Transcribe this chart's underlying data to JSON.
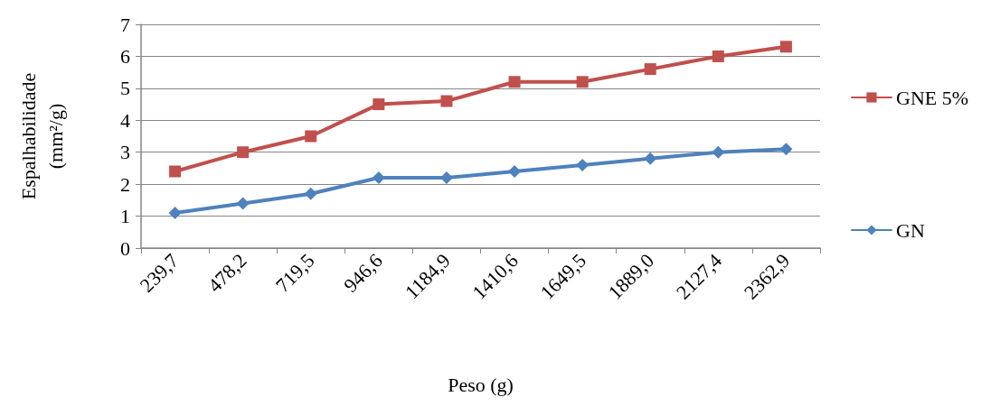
{
  "chart_data": {
    "type": "line",
    "xlabel": "Peso (g)",
    "ylabel": "Espalhabilidade (mm²/g)",
    "categories": [
      "239,7",
      "478,2",
      "719,5",
      "946,6",
      "1184,9",
      "1410,6",
      "1649,5",
      "1889,0",
      "2127,4",
      "2362,9"
    ],
    "series": [
      {
        "name": "GNE 5%",
        "color": "#c0504d",
        "marker": "square",
        "values": [
          2.4,
          3.0,
          3.5,
          4.5,
          4.6,
          5.2,
          5.2,
          5.6,
          6.0,
          6.3
        ]
      },
      {
        "name": "GN",
        "color": "#4f81bd",
        "marker": "diamond",
        "values": [
          1.1,
          1.4,
          1.7,
          2.2,
          2.2,
          2.4,
          2.6,
          2.8,
          3.0,
          3.1
        ]
      }
    ],
    "ylim": [
      0,
      7
    ],
    "yticks": [
      0,
      1,
      2,
      3,
      4,
      5,
      6,
      7
    ],
    "grid": "y",
    "legend": "right",
    "line_style": "solid"
  }
}
